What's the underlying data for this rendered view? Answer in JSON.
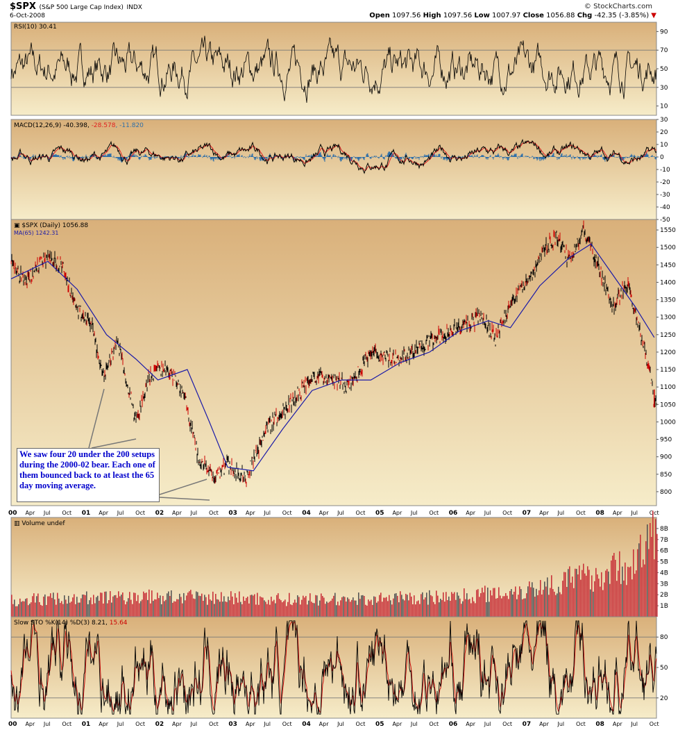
{
  "header": {
    "symbol": "$SPX",
    "symbol_desc": "(S&P 500 Large Cap Index)",
    "exchange": "INDX",
    "date": "6-Oct-2008",
    "brand": "© StockCharts.com",
    "ohlc": {
      "open_label": "Open",
      "open": "1097.56",
      "high_label": "High",
      "high": "1097.56",
      "low_label": "Low",
      "low": "1007.97",
      "close_label": "Close",
      "close": "1056.88",
      "chg_label": "Chg",
      "chg": "-42.35 (-3.85%)",
      "chg_icon": "down-triangle-icon"
    }
  },
  "colors": {
    "panel_top": "#d9b07a",
    "panel_bottom": "#f6ecc9",
    "price": "#000000",
    "ma": "#1a1aa8",
    "macd_signal": "#e02020",
    "histogram": "#2f6fa8",
    "volume": "#c8333a",
    "annotation_text": "#0000cc"
  },
  "chart_data": [
    {
      "type": "line",
      "panel": "RSI",
      "title": "RSI(10) 30.41",
      "ylim": [
        0,
        100
      ],
      "yticks": [
        10,
        30,
        50,
        70,
        90
      ],
      "reference_lines": [
        30,
        70
      ]
    },
    {
      "type": "line",
      "panel": "MACD",
      "title": "MACD(12,26,9)",
      "values_text": {
        "macd": "-40.398",
        "signal": "-28.578",
        "histogram": "-11.820"
      },
      "ylim": [
        -50,
        30
      ],
      "yticks": [
        30,
        20,
        10,
        0,
        -10,
        -20,
        -30,
        -40,
        -50
      ]
    },
    {
      "type": "line",
      "panel": "Price",
      "title": "$SPX (Daily) 1056.88",
      "ma_label": "MA(65) 1242.31",
      "ylim": [
        760,
        1580
      ],
      "yticks": [
        800,
        850,
        900,
        950,
        1000,
        1050,
        1100,
        1150,
        1200,
        1250,
        1300,
        1350,
        1400,
        1450,
        1500,
        1550
      ],
      "x": [
        2000.0,
        2000.2,
        2000.45,
        2000.7,
        2000.9,
        2001.1,
        2001.25,
        2001.45,
        2001.7,
        2001.9,
        2002.15,
        2002.35,
        2002.55,
        2002.75,
        2002.95,
        2003.2,
        2003.5,
        2003.8,
        2004.1,
        2004.4,
        2004.6,
        2004.9,
        2005.2,
        2005.4,
        2005.7,
        2005.9,
        2006.2,
        2006.4,
        2006.6,
        2006.9,
        2007.1,
        2007.3,
        2007.45,
        2007.6,
        2007.8,
        2007.95,
        2008.2,
        2008.4,
        2008.55,
        2008.7,
        2008.76
      ],
      "values": [
        1450,
        1400,
        1470,
        1450,
        1320,
        1280,
        1120,
        1240,
        1000,
        1140,
        1150,
        1080,
        900,
        840,
        880,
        840,
        990,
        1050,
        1130,
        1120,
        1100,
        1200,
        1180,
        1190,
        1230,
        1250,
        1280,
        1300,
        1240,
        1380,
        1420,
        1510,
        1530,
        1460,
        1550,
        1470,
        1330,
        1400,
        1270,
        1150,
        1057
      ],
      "ma_x": [
        2000.0,
        2000.5,
        2000.9,
        2001.3,
        2001.7,
        2002.0,
        2002.4,
        2002.7,
        2002.95,
        2003.3,
        2003.7,
        2004.1,
        2004.5,
        2004.9,
        2005.3,
        2005.7,
        2006.1,
        2006.5,
        2006.8,
        2007.2,
        2007.6,
        2007.9,
        2008.2,
        2008.5,
        2008.76
      ],
      "ma_values": [
        1410,
        1460,
        1380,
        1250,
        1180,
        1120,
        1150,
        1000,
        870,
        860,
        980,
        1090,
        1120,
        1120,
        1170,
        1200,
        1260,
        1290,
        1270,
        1390,
        1470,
        1510,
        1420,
        1330,
        1242
      ],
      "annotation": "We saw four 20 under the 200 setups during the 2000-02 bear. Each one of them bounced back to at least the 65 day moving average."
    },
    {
      "type": "bar",
      "panel": "Volume",
      "title": "Volume undef",
      "ylim": [
        0,
        9
      ],
      "yticks": [
        "1B",
        "2B",
        "3B",
        "4B",
        "5B",
        "6B",
        "7B",
        "8B"
      ],
      "x": [
        2000.0,
        2001.0,
        2002.0,
        2003.0,
        2004.0,
        2005.0,
        2006.0,
        2007.0,
        2007.5,
        2008.0,
        2008.5,
        2008.76
      ],
      "values": [
        1.7,
        1.9,
        2.0,
        1.9,
        1.7,
        1.8,
        2.0,
        2.7,
        3.6,
        4.2,
        5.5,
        8.2
      ]
    },
    {
      "type": "line",
      "panel": "Slow Stochastic",
      "title": "Slow STO %K(14) %D(3)",
      "values_text": {
        "k": "8.21",
        "d": "15.64"
      },
      "ylim": [
        0,
        100
      ],
      "yticks": [
        20,
        50,
        80
      ],
      "reference_lines": [
        20,
        80
      ]
    }
  ],
  "x_axis": {
    "labels": [
      "00",
      "Apr",
      "Jul",
      "Oct",
      "01",
      "Apr",
      "Jul",
      "Oct",
      "02",
      "Apr",
      "Jul",
      "Oct",
      "03",
      "Apr",
      "Jul",
      "Oct",
      "04",
      "Apr",
      "Jul",
      "Oct",
      "05",
      "Apr",
      "Jul",
      "Oct",
      "06",
      "Apr",
      "Jul",
      "Oct",
      "07",
      "Apr",
      "Jul",
      "Oct",
      "08",
      "Apr",
      "Jul",
      "Oct"
    ],
    "range": [
      2000.0,
      2008.79
    ]
  }
}
